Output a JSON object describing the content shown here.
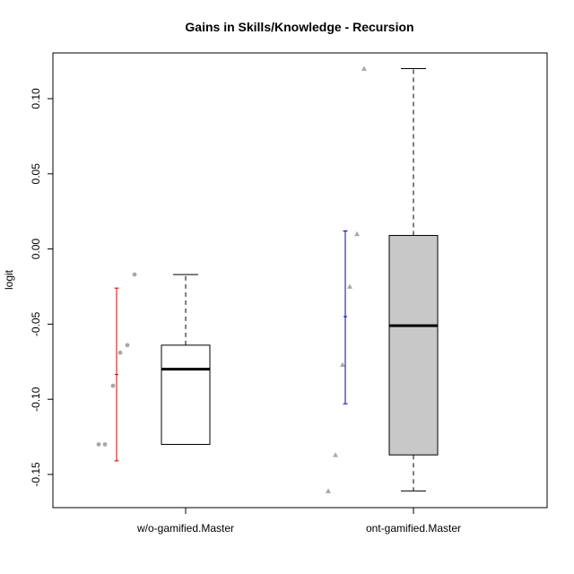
{
  "chart_data": {
    "type": "box",
    "title": "Gains in Skills/Knowledge - Recursion",
    "ylabel": "logit",
    "xlabel": "",
    "ylim": [
      -0.17,
      0.13
    ],
    "yticks": [
      -0.15,
      -0.1,
      -0.05,
      0.0,
      0.05,
      0.1
    ],
    "ytick_labels": [
      "-0.15",
      "-0.10",
      "-0.05",
      "0.00",
      "0.05",
      "0.10"
    ],
    "grid": false,
    "groups": [
      {
        "name": "w/o-gamified.Master",
        "box": {
          "whisker_low": -0.13,
          "q1": -0.13,
          "median": -0.08,
          "q3": -0.064,
          "whisker_high": -0.017
        },
        "box_fill": "#ffffff",
        "points": [
          -0.13,
          -0.13,
          -0.091,
          -0.069,
          -0.064,
          -0.017
        ],
        "point_shape": "circle",
        "mean_sd": {
          "mean": -0.0835,
          "low": -0.141,
          "high": -0.026,
          "color": "#dd0000"
        }
      },
      {
        "name": "ont-gamified.Master",
        "box": {
          "whisker_low": -0.161,
          "q1": -0.137,
          "median": -0.051,
          "q3": 0.009,
          "whisker_high": 0.12
        },
        "box_fill": "#c8c8c8",
        "points": [
          -0.161,
          -0.137,
          -0.077,
          -0.025,
          0.01,
          0.12
        ],
        "point_shape": "triangle",
        "mean_sd": {
          "mean": -0.045,
          "low": -0.103,
          "high": 0.012,
          "color": "#0000aa"
        }
      }
    ],
    "point_color": "#a8a8a8"
  }
}
